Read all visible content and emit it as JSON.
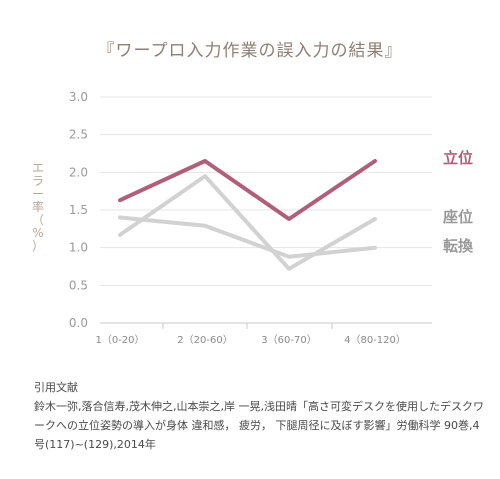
{
  "chart_data": {
    "type": "line",
    "title": "『ワープロ入力作業の誤入力の結果』",
    "ylabel": "エラー率（%）",
    "categories": [
      "1（0-20）",
      "2（20-60）",
      "3（60-70）",
      "4（80-120）"
    ],
    "ylim": [
      0,
      3
    ],
    "yticks": [
      "0.0",
      "0.5",
      "1.0",
      "1.5",
      "2.0",
      "2.5",
      "3.0"
    ],
    "grid": true,
    "series": [
      {
        "name": "立位",
        "values": [
          1.63,
          2.15,
          1.38,
          2.15
        ],
        "color": "#b05e7a"
      },
      {
        "name": "座位",
        "values": [
          1.17,
          1.95,
          0.72,
          1.38
        ],
        "color": "#d2d2d2"
      },
      {
        "name": "転換",
        "values": [
          1.4,
          1.29,
          0.88,
          1.0
        ],
        "color": "#d2d2d2"
      }
    ]
  },
  "citation": {
    "heading": "引用文献",
    "body": "鈴木一弥,落合信寿,茂木伸之,山本崇之,岸 一晃,浅田晴「高さ可変デスクを使用したデスクワークへの立位姿勢の導入が身体 違和感， 疲労， 下腿周径に及ぼす影響」労働科学 90巻,4号(117)~(129),2014年"
  }
}
